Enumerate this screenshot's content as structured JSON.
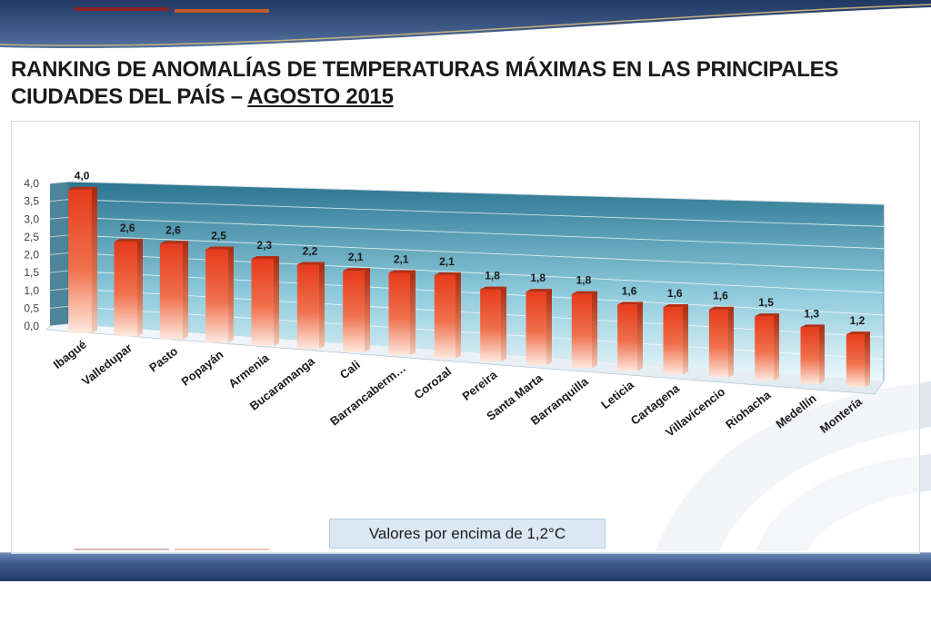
{
  "slide": {
    "title_line1": "RANKING DE ANOMALÍAS DE TEMPERATURAS MÁXIMAS EN LAS PRINCIPALES",
    "title_line2_plain": "CIUDADES DEL PAÍS – ",
    "title_line2_underlined": "AGOSTO 2015",
    "caption": "Valores por encima de 1,2°C"
  },
  "colors": {
    "bar": "#e8401f",
    "bar_top": "#f07a52",
    "bar_side": "#b52e12",
    "wall_top": "#2f7a92",
    "wall_bottom": "#e6f6fb",
    "band": "#2e4c7f"
  },
  "chart_data": {
    "type": "bar",
    "title": "",
    "xlabel": "",
    "ylabel": "",
    "ylim": [
      0,
      4
    ],
    "yticks": [
      "0,0",
      "0,5",
      "1,0",
      "1,5",
      "2,0",
      "2,5",
      "3,0",
      "3,5",
      "4,0"
    ],
    "grid": true,
    "categories": [
      "Ibagué",
      "Valledupar",
      "Pasto",
      "Popayán",
      "Armenia",
      "Bucaramanga",
      "Cali",
      "Barrancaberm…",
      "Corozal",
      "Pereira",
      "Santa Marta",
      "Barranquilla",
      "Leticia",
      "Cartagena",
      "Villavicencio",
      "Riohacha",
      "Medellín",
      "Montería"
    ],
    "values": [
      4.0,
      2.6,
      2.6,
      2.5,
      2.3,
      2.2,
      2.1,
      2.1,
      2.1,
      1.8,
      1.8,
      1.8,
      1.6,
      1.6,
      1.6,
      1.5,
      1.3,
      1.2
    ],
    "value_labels": [
      "4,0",
      "2,6",
      "2,6",
      "2,5",
      "2,3",
      "2,2",
      "2,1",
      "2,1",
      "2,1",
      "1,8",
      "1,8",
      "1,8",
      "1,6",
      "1,6",
      "1,6",
      "1,5",
      "1,3",
      "1,2"
    ]
  }
}
